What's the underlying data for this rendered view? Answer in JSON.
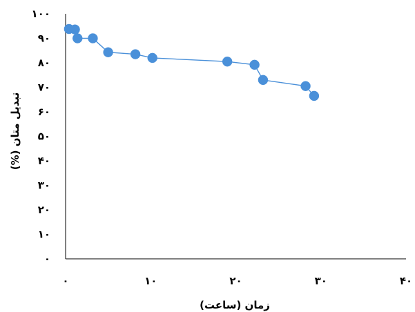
{
  "chart_data": {
    "type": "scatter",
    "title": "",
    "xlabel": "زمان (ساعت)",
    "ylabel": "تبدیل متان (%)",
    "xlim": [
      0,
      40
    ],
    "ylim": [
      0,
      100
    ],
    "x_ticks": [
      0,
      10,
      20,
      30,
      40
    ],
    "y_ticks": [
      0,
      10,
      20,
      30,
      40,
      50,
      60,
      70,
      80,
      90,
      100
    ],
    "x_tick_labels": [
      "۰",
      "۱۰",
      "۲۰",
      "۳۰",
      "۴۰"
    ],
    "y_tick_labels": [
      "۰",
      "۱۰",
      "۲۰",
      "۳۰",
      "۴۰",
      "۵۰",
      "۶۰",
      "۷۰",
      "۸۰",
      "۹۰",
      "۱۰۰"
    ],
    "grid": false,
    "legend": "none",
    "series": [
      {
        "color": "#4a90d9",
        "line_color": "#4a90d9",
        "marker": "circle",
        "points": [
          {
            "x": 0.4,
            "y": 93.8
          },
          {
            "x": 1.1,
            "y": 93.6
          },
          {
            "x": 1.4,
            "y": 90.0
          },
          {
            "x": 3.2,
            "y": 90.0
          },
          {
            "x": 5.0,
            "y": 84.3
          },
          {
            "x": 8.2,
            "y": 83.5
          },
          {
            "x": 10.2,
            "y": 82.0
          },
          {
            "x": 19.0,
            "y": 80.5
          },
          {
            "x": 22.2,
            "y": 79.2
          },
          {
            "x": 23.2,
            "y": 73.0
          },
          {
            "x": 28.2,
            "y": 70.5
          },
          {
            "x": 29.2,
            "y": 66.5
          }
        ]
      }
    ]
  }
}
